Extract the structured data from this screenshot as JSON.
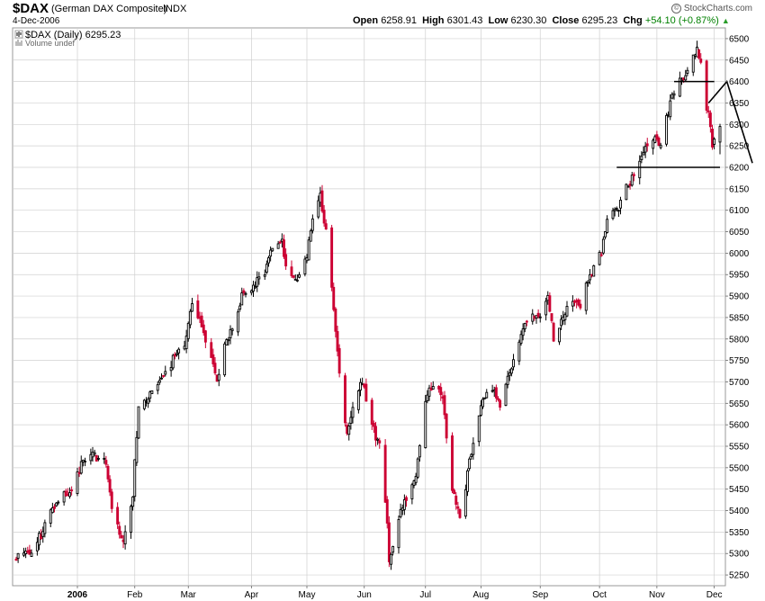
{
  "header": {
    "symbol": "$DAX",
    "name": "(German DAX Composite)",
    "exchange": "INDX",
    "date": "4-Dec-2006",
    "open_label": "Open",
    "open": "6258.91",
    "high_label": "High",
    "high": "6301.43",
    "low_label": "Low",
    "low": "6230.30",
    "close_label": "Close",
    "close": "6295.23",
    "chg_label": "Chg",
    "chg": "+54.10 (+0.87%)",
    "brand": "StockCharts.com",
    "brand_icon": "©"
  },
  "legend": {
    "series": "$DAX (Daily) 6295.23",
    "volume": "Volume undef"
  },
  "colors": {
    "up": "#000000",
    "down": "#cc0033",
    "grid": "#d0d0d0",
    "trend": "#000000"
  },
  "chart_data": {
    "type": "candlestick",
    "ylim": [
      5225,
      6525
    ],
    "y_ticks": [
      5250,
      5300,
      5350,
      5400,
      5450,
      5500,
      5550,
      5600,
      5650,
      5700,
      5750,
      5800,
      5850,
      5900,
      5950,
      6000,
      6050,
      6100,
      6150,
      6200,
      6250,
      6300,
      6350,
      6400,
      6450,
      6500
    ],
    "x_labels": [
      "2006",
      "Feb",
      "Mar",
      "Apr",
      "May",
      "Jun",
      "Jul",
      "Aug",
      "Sep",
      "Oct",
      "Nov",
      "Dec"
    ],
    "month_starts": [
      "2006-01-02",
      "2006-02-01",
      "2006-03-01",
      "2006-04-03",
      "2006-05-02",
      "2006-06-01",
      "2006-07-03",
      "2006-08-01",
      "2006-09-01",
      "2006-10-02",
      "2006-11-01",
      "2006-12-01"
    ],
    "x_start": "2005-12-01",
    "x_end": "2006-12-04",
    "close_path": [
      [
        "2005-12-01",
        5290
      ],
      [
        "2005-12-05",
        5310
      ],
      [
        "2005-12-09",
        5305
      ],
      [
        "2005-12-14",
        5345
      ],
      [
        "2005-12-19",
        5400
      ],
      [
        "2005-12-23",
        5430
      ],
      [
        "2005-12-30",
        5450
      ],
      [
        "2006-01-05",
        5515
      ],
      [
        "2006-01-10",
        5535
      ],
      [
        "2006-01-13",
        5520
      ],
      [
        "2006-01-17",
        5510
      ],
      [
        "2006-01-20",
        5410
      ],
      [
        "2006-01-24",
        5350
      ],
      [
        "2006-01-26",
        5320
      ],
      [
        "2006-01-31",
        5440
      ],
      [
        "2006-02-03",
        5650
      ],
      [
        "2006-02-08",
        5660
      ],
      [
        "2006-02-13",
        5690
      ],
      [
        "2006-02-17",
        5720
      ],
      [
        "2006-02-22",
        5760
      ],
      [
        "2006-02-28",
        5800
      ],
      [
        "2006-03-03",
        5880
      ],
      [
        "2006-03-08",
        5830
      ],
      [
        "2006-03-13",
        5750
      ],
      [
        "2006-03-16",
        5700
      ],
      [
        "2006-03-20",
        5780
      ],
      [
        "2006-03-24",
        5830
      ],
      [
        "2006-03-29",
        5900
      ],
      [
        "2006-04-04",
        5920
      ],
      [
        "2006-04-10",
        5960
      ],
      [
        "2006-04-13",
        6000
      ],
      [
        "2006-04-19",
        6030
      ],
      [
        "2006-04-21",
        5960
      ],
      [
        "2006-04-27",
        5940
      ],
      [
        "2006-05-02",
        6000
      ],
      [
        "2006-05-05",
        6090
      ],
      [
        "2006-05-09",
        6130
      ],
      [
        "2006-05-12",
        6050
      ],
      [
        "2006-05-16",
        5870
      ],
      [
        "2006-05-19",
        5720
      ],
      [
        "2006-05-23",
        5580
      ],
      [
        "2006-05-26",
        5650
      ],
      [
        "2006-05-31",
        5700
      ],
      [
        "2006-06-05",
        5600
      ],
      [
        "2006-06-09",
        5550
      ],
      [
        "2006-06-13",
        5380
      ],
      [
        "2006-06-14",
        5270
      ],
      [
        "2006-06-19",
        5380
      ],
      [
        "2006-06-23",
        5430
      ],
      [
        "2006-06-28",
        5480
      ],
      [
        "2006-07-03",
        5650
      ],
      [
        "2006-07-07",
        5700
      ],
      [
        "2006-07-12",
        5660
      ],
      [
        "2006-07-17",
        5450
      ],
      [
        "2006-07-21",
        5380
      ],
      [
        "2006-07-26",
        5510
      ],
      [
        "2006-08-01",
        5640
      ],
      [
        "2006-08-07",
        5690
      ],
      [
        "2006-08-11",
        5640
      ],
      [
        "2006-08-16",
        5720
      ],
      [
        "2006-08-21",
        5800
      ],
      [
        "2006-08-25",
        5850
      ],
      [
        "2006-08-31",
        5850
      ],
      [
        "2006-09-05",
        5900
      ],
      [
        "2006-09-08",
        5800
      ],
      [
        "2006-09-13",
        5850
      ],
      [
        "2006-09-18",
        5890
      ],
      [
        "2006-09-22",
        5880
      ],
      [
        "2006-09-28",
        5960
      ],
      [
        "2006-10-03",
        6000
      ],
      [
        "2006-10-06",
        6080
      ],
      [
        "2006-10-11",
        6100
      ],
      [
        "2006-10-16",
        6150
      ],
      [
        "2006-10-20",
        6180
      ],
      [
        "2006-10-25",
        6240
      ],
      [
        "2006-10-31",
        6270
      ],
      [
        "2006-11-03",
        6250
      ],
      [
        "2006-11-08",
        6350
      ],
      [
        "2006-11-13",
        6400
      ],
      [
        "2006-11-17",
        6430
      ],
      [
        "2006-11-22",
        6470
      ],
      [
        "2006-11-24",
        6440
      ],
      [
        "2006-11-27",
        6340
      ],
      [
        "2006-11-29",
        6300
      ],
      [
        "2006-11-30",
        6250
      ],
      [
        "2006-12-04",
        6295
      ]
    ],
    "volatility": 22,
    "seed": 11,
    "down_fraction_hint": 0.45,
    "last_bar": {
      "date": "2006-12-04",
      "open": 6258.91,
      "high": 6301.43,
      "low": 6230.3,
      "close": 6295.23
    },
    "annotations": {
      "hlines": [
        {
          "y": 6200,
          "from": "2006-10-11",
          "to": "2006-12-04"
        },
        {
          "y": 6400,
          "from": "2006-11-10",
          "to": "2006-12-01"
        }
      ],
      "trendline": [
        [
          "2006-11-28",
          6350
        ],
        [
          "2006-12-01",
          6400
        ],
        [
          "2006-12-04",
          6210
        ]
      ]
    },
    "grid": true,
    "legend_position": "top-left"
  }
}
